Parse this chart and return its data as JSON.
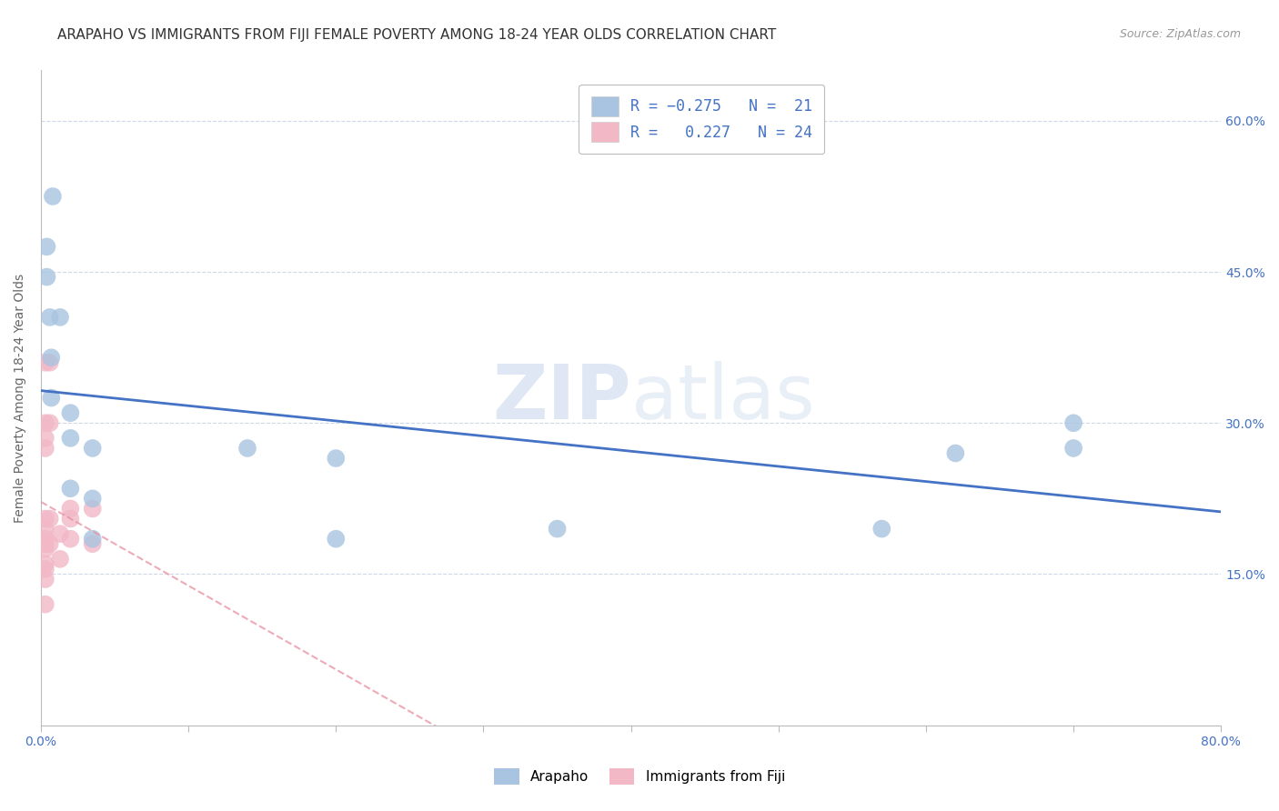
{
  "title": "ARAPAHO VS IMMIGRANTS FROM FIJI FEMALE POVERTY AMONG 18-24 YEAR OLDS CORRELATION CHART",
  "source": "Source: ZipAtlas.com",
  "ylabel": "Female Poverty Among 18-24 Year Olds",
  "xlim": [
    0,
    0.8
  ],
  "ylim": [
    0,
    0.65
  ],
  "watermark": "ZIPatlas",
  "arapaho_color": "#a8c4e0",
  "fiji_color": "#f2b8c6",
  "trendline_arapaho_color": "#4472c4",
  "trendline_fiji_color": "#e88fa0",
  "arapaho_x": [
    0.008,
    0.004,
    0.004,
    0.006,
    0.013,
    0.007,
    0.007,
    0.02,
    0.02,
    0.035,
    0.02,
    0.035,
    0.14,
    0.2,
    0.035,
    0.2,
    0.35,
    0.57,
    0.7,
    0.62,
    0.7
  ],
  "arapaho_y": [
    0.525,
    0.475,
    0.445,
    0.405,
    0.405,
    0.365,
    0.325,
    0.31,
    0.285,
    0.275,
    0.235,
    0.225,
    0.275,
    0.265,
    0.185,
    0.185,
    0.195,
    0.195,
    0.275,
    0.27,
    0.3
  ],
  "fiji_x": [
    0.003,
    0.003,
    0.003,
    0.003,
    0.003,
    0.003,
    0.003,
    0.003,
    0.003,
    0.003,
    0.003,
    0.003,
    0.003,
    0.006,
    0.006,
    0.006,
    0.006,
    0.013,
    0.013,
    0.02,
    0.02,
    0.02,
    0.035,
    0.035
  ],
  "fiji_y": [
    0.36,
    0.3,
    0.285,
    0.275,
    0.205,
    0.195,
    0.185,
    0.18,
    0.175,
    0.16,
    0.155,
    0.145,
    0.12,
    0.36,
    0.3,
    0.205,
    0.18,
    0.19,
    0.165,
    0.215,
    0.205,
    0.185,
    0.215,
    0.18
  ],
  "background_color": "#ffffff",
  "grid_color": "#c8d4e8",
  "title_fontsize": 11,
  "axis_label_fontsize": 10,
  "tick_fontsize": 10,
  "legend_fontsize": 12
}
